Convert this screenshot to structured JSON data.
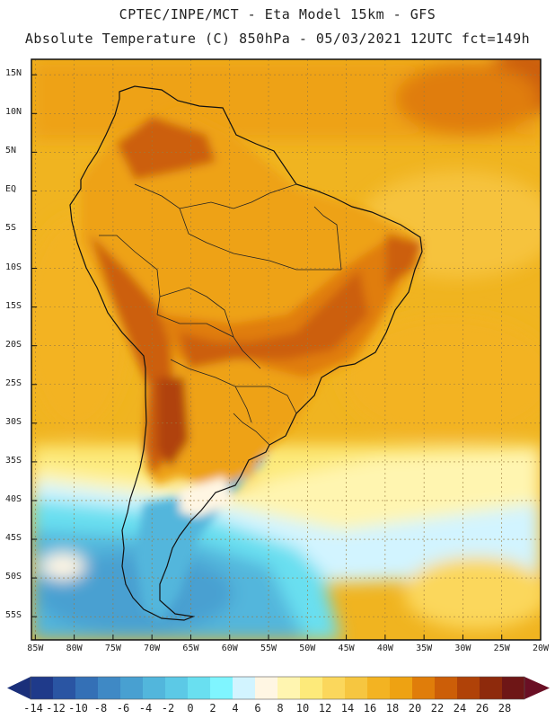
{
  "header": {
    "line1": "CPTEC/INPE/MCT -  Eta Model 15km - GFS",
    "line2": "Absolute Temperature (C) 850hPa - 05/03/2021 12UTC fct=149h"
  },
  "map": {
    "lat_ticks": [
      "15N",
      "10N",
      "5N",
      "EQ",
      "5S",
      "10S",
      "15S",
      "20S",
      "25S",
      "30S",
      "35S",
      "40S",
      "45S",
      "50S",
      "55S"
    ],
    "lon_ticks": [
      "85W",
      "80W",
      "75W",
      "70W",
      "65W",
      "60W",
      "55W",
      "50W",
      "45W",
      "40W",
      "35W",
      "30W",
      "25W",
      "20W"
    ],
    "lat_values": [
      15,
      10,
      5,
      0,
      -5,
      -10,
      -15,
      -20,
      -25,
      -30,
      -35,
      -40,
      -45,
      -50,
      -55
    ],
    "lon_values": [
      -85,
      -80,
      -75,
      -70,
      -65,
      -60,
      -55,
      -50,
      -45,
      -40,
      -35,
      -30,
      -25,
      -20
    ],
    "extent": {
      "lon_min": -85.5,
      "lon_max": -20,
      "lat_min": -58,
      "lat_max": 17
    }
  },
  "colorbar": {
    "units": "C",
    "labels": [
      "-14",
      "-12",
      "-10",
      "-8",
      "-6",
      "-4",
      "-2",
      "0",
      "2",
      "4",
      "6",
      "8",
      "10",
      "12",
      "14",
      "16",
      "18",
      "20",
      "22",
      "24",
      "26",
      "28"
    ],
    "colors": [
      "#1f3a8a",
      "#2a55a3",
      "#3470b6",
      "#3f89c5",
      "#48a0d1",
      "#52b6dc",
      "#5cc9e6",
      "#69dff0",
      "#7ff5ff",
      "#d2f4ff",
      "#fff6e3",
      "#fff5b0",
      "#fdea7a",
      "#fbd75c",
      "#f6c640",
      "#f3b322",
      "#eea212",
      "#e07d0a",
      "#cc5e08",
      "#b04208",
      "#8e2a0c",
      "#6e1616"
    ],
    "low_arrow_color": "#1a2f7a",
    "high_arrow_color": "#6a0f24"
  },
  "legend_colors": {
    "ocean_north": "#f0b420",
    "ocean_mid": "#f6c33c",
    "ocean_south_cool": "#56c6e2",
    "land_base": "#eea212",
    "land_hot": "#cc5e08"
  }
}
